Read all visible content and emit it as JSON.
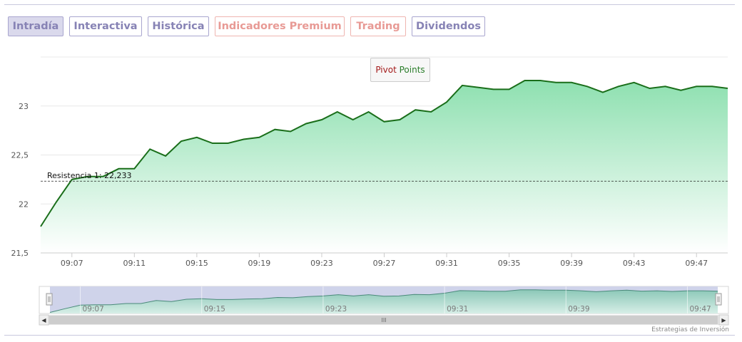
{
  "tabs": [
    {
      "label": "Intradía",
      "color": "#8783b5",
      "active": true
    },
    {
      "label": "Interactiva",
      "color": "#8783b5",
      "active": false
    },
    {
      "label": "Histórica",
      "color": "#8783b5",
      "active": false
    },
    {
      "label": "Indicadores Premium",
      "color": "#e89a95",
      "active": false
    },
    {
      "label": "Trading",
      "color": "#e89a95",
      "active": false
    },
    {
      "label": "Dividendos",
      "color": "#8783b5",
      "active": false
    }
  ],
  "indicator_button": {
    "part1": "Pivot",
    "part2": "Points"
  },
  "resistance_label": "Resistencia 1: 22,233",
  "navigator": {
    "x_labels": [
      "09:07",
      "09:15",
      "09:23",
      "09:31",
      "09:39",
      "09:47"
    ],
    "scroll_grip": "III"
  },
  "credit": "Estrategias de Inversión",
  "colors": {
    "line": "#1a6e1a",
    "fill_top": "#8ee0b0",
    "fill_bottom": "#ffffff",
    "navigator_selection": "#cfd3ea"
  },
  "chart_data": {
    "type": "area",
    "title": "",
    "xlabel": "",
    "ylabel": "",
    "x_tick_labels": [
      "09:07",
      "09:11",
      "09:15",
      "09:19",
      "09:23",
      "09:27",
      "09:31",
      "09:35",
      "09:39",
      "09:43",
      "09:47"
    ],
    "y_tick_labels": [
      "21,5",
      "22",
      "22,5",
      "23"
    ],
    "y_ticks": [
      21.5,
      22,
      22.5,
      23
    ],
    "ylim": [
      21.5,
      23.5
    ],
    "grid": true,
    "resistance_level": 22.233,
    "series": [
      {
        "x": [
          "09:05",
          "09:06",
          "09:07",
          "09:08",
          "09:09",
          "09:10",
          "09:11",
          "09:12",
          "09:13",
          "09:14",
          "09:15",
          "09:16",
          "09:17",
          "09:18",
          "09:19",
          "09:20",
          "09:21",
          "09:22",
          "09:23",
          "09:24",
          "09:25",
          "09:26",
          "09:27",
          "09:28",
          "09:29",
          "09:30",
          "09:31",
          "09:32",
          "09:33",
          "09:34",
          "09:35",
          "09:36",
          "09:37",
          "09:38",
          "09:39",
          "09:40",
          "09:41",
          "09:42",
          "09:43",
          "09:44",
          "09:45",
          "09:46",
          "09:47",
          "09:48",
          "09:49"
        ],
        "values": [
          21.77,
          22.02,
          22.25,
          22.28,
          22.28,
          22.36,
          22.36,
          22.56,
          22.49,
          22.64,
          22.68,
          22.62,
          22.62,
          22.66,
          22.68,
          22.76,
          22.74,
          22.82,
          22.86,
          22.94,
          22.86,
          22.94,
          22.84,
          22.86,
          22.96,
          22.94,
          23.04,
          23.21,
          23.19,
          23.17,
          23.17,
          23.26,
          23.26,
          23.24,
          23.24,
          23.2,
          23.14,
          23.2,
          23.24,
          23.18,
          23.2,
          23.16,
          23.2,
          23.2,
          23.18
        ]
      }
    ]
  }
}
